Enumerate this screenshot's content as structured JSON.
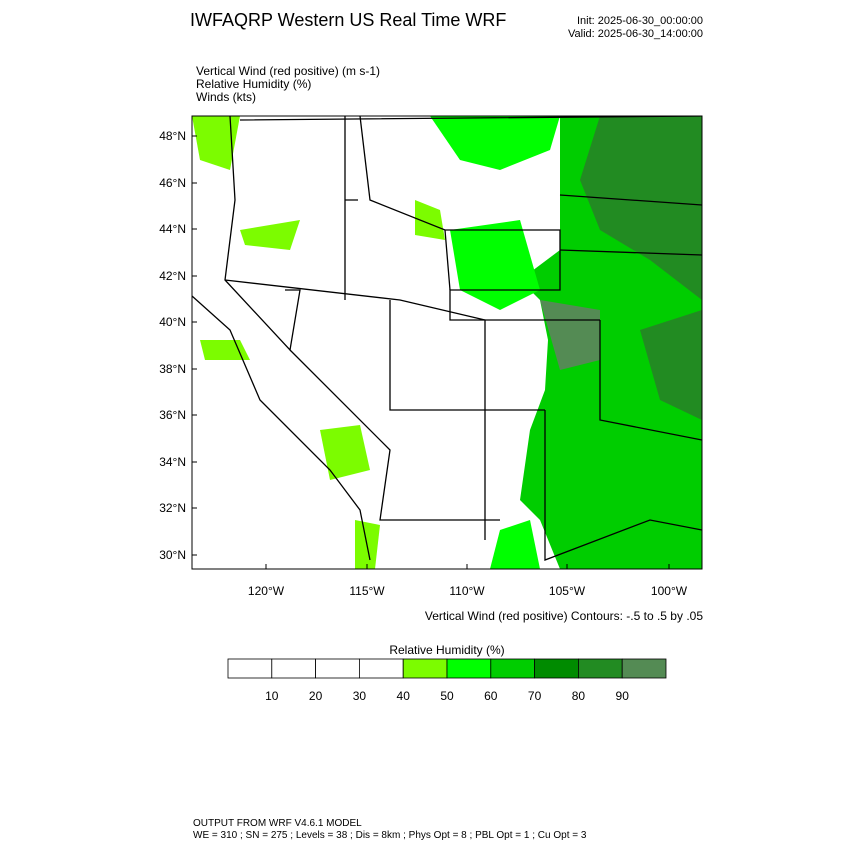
{
  "header": {
    "title": "IWFAQRP Western US Real Time WRF",
    "init": "Init: 2025-06-30_00:00:00",
    "valid": "Valid: 2025-06-30_14:00:00"
  },
  "fields": [
    "Vertical Wind (red positive)   (m s-1)",
    "Relative Humidity   (%)",
    "Winds   (kts)"
  ],
  "map": {
    "lat_labels": [
      "48°N",
      "46°N",
      "44°N",
      "42°N",
      "40°N",
      "38°N",
      "36°N",
      "34°N",
      "32°N",
      "30°N"
    ],
    "lon_labels": [
      "120°W",
      "115°W",
      "110°W",
      "105°W",
      "100°W"
    ],
    "contour_note": "Vertical Wind (red positive) Contours: -.5 to .5 by .05"
  },
  "colorbar": {
    "title": "Relative Humidity  (%)",
    "ticks": [
      10,
      20,
      30,
      40,
      50,
      60,
      70,
      80,
      90
    ],
    "colors": [
      "#ffffff",
      "#ffffff",
      "#ffffff",
      "#ffffff",
      "#7cfc00",
      "#00ff00",
      "#00cd00",
      "#008b00",
      "#228b22",
      "#548b54"
    ]
  },
  "footer": {
    "line1": "OUTPUT FROM WRF V4.6.1 MODEL",
    "line2": "WE = 310 ; SN = 275 ; Levels = 38 ; Dis = 8km ; Phys Opt = 8 ; PBL Opt = 1 ; Cu Opt = 3"
  }
}
